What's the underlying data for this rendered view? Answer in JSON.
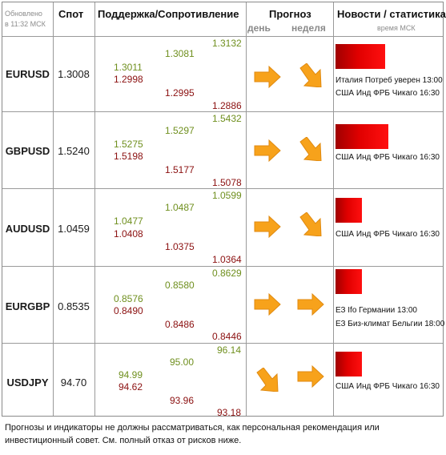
{
  "header": {
    "updated_line1": "Обновлено",
    "updated_line2": "в 11:32 МСК",
    "spot": "Спот",
    "sr": "Поддержка/Сопротивление",
    "forecast": "Прогноз",
    "day": "день",
    "week": "неделя",
    "news": "Новости / статистика",
    "time_label": "время МСК"
  },
  "rows": [
    {
      "pair": "EURUSD",
      "spot": "1.3008",
      "levels": {
        "r1": "1.3011",
        "s1": "1.2998",
        "r2": "1.3081",
        "s2": "1.2995",
        "r3": "1.3132",
        "s3": "1.2886"
      },
      "forecast_day": "up",
      "forecast_week": "down",
      "news_intensity": 0.94,
      "news": [
        "Италия Потреб уверен 13:00",
        "США Инд ФРБ Чикаго 16:30"
      ]
    },
    {
      "pair": "GBPUSD",
      "spot": "1.5240",
      "levels": {
        "r1": "1.5275",
        "s1": "1.5198",
        "r2": "1.5297",
        "s2": "1.5177",
        "r3": "1.5432",
        "s3": "1.5078"
      },
      "forecast_day": "up",
      "forecast_week": "down",
      "news_intensity": 1.0,
      "news": [
        "США Инд ФРБ Чикаго 16:30"
      ]
    },
    {
      "pair": "AUDUSD",
      "spot": "1.0459",
      "levels": {
        "r1": "1.0477",
        "s1": "1.0408",
        "r2": "1.0487",
        "s2": "1.0375",
        "r3": "1.0599",
        "s3": "1.0364"
      },
      "forecast_day": "up",
      "forecast_week": "down",
      "news_intensity": 0.5,
      "news": [
        "США Инд ФРБ Чикаго 16:30"
      ]
    },
    {
      "pair": "EURGBP",
      "spot": "0.8535",
      "levels": {
        "r1": "0.8576",
        "s1": "0.8490",
        "r2": "0.8580",
        "s2": "0.8486",
        "r3": "0.8629",
        "s3": "0.8446"
      },
      "forecast_day": "up",
      "forecast_week": "up",
      "news_intensity": 0.5,
      "news": [
        "ЕЗ Ifo Германии 13:00",
        "ЕЗ Биз-климат Бельгии 18:00"
      ]
    },
    {
      "pair": "USDJPY",
      "spot": "94.70",
      "levels": {
        "r1": "94.99",
        "s1": "94.62",
        "r2": "95.00",
        "s2": "93.96",
        "r3": "96.14",
        "s3": "93.18"
      },
      "forecast_day": "down",
      "forecast_week": "up",
      "news_intensity": 0.5,
      "news": [
        "США Инд ФРБ Чикаго 16:30"
      ]
    }
  ],
  "disclaimer": "Прогнозы и индикаторы не должны рассматриваться, как персональная рекомендация или инвестиционный совет. См. полный отказ от рисков ниже.",
  "colors": {
    "support_color": "#8b1010",
    "resistance_color": "#6f8f1e",
    "arrow_color": "#f7a21b",
    "news_bar_color": "#e00000"
  },
  "icons": {
    "arrow_up": "arrow-right-icon",
    "arrow_down": "arrow-down-right-icon"
  }
}
